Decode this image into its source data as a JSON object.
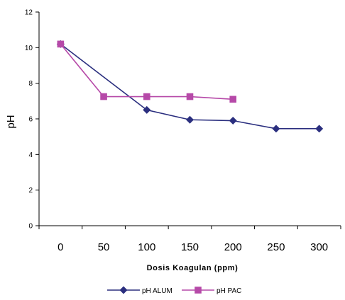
{
  "chart_data": {
    "type": "line",
    "title": "",
    "xlabel": "Dosis Koagulan (ppm)",
    "ylabel": "pH",
    "categories": [
      "0",
      "50",
      "100",
      "150",
      "200",
      "250",
      "300"
    ],
    "x": [
      0,
      50,
      100,
      150,
      200,
      250,
      300
    ],
    "ylim": [
      0,
      12
    ],
    "yticks": [
      0,
      2,
      4,
      6,
      8,
      10,
      12
    ],
    "grid": false,
    "legend_position": "bottom",
    "series": [
      {
        "name": "pH ALUM",
        "color": "#2B2F7F",
        "marker": "diamond",
        "x": [
          0,
          100,
          150,
          200,
          250,
          300
        ],
        "values": [
          10.2,
          6.5,
          5.95,
          5.9,
          5.45,
          5.45
        ]
      },
      {
        "name": "pH PAC",
        "color": "#B649A8",
        "marker": "square",
        "x": [
          0,
          50,
          100,
          150,
          200
        ],
        "values": [
          10.2,
          7.25,
          7.25,
          7.25,
          7.1
        ]
      }
    ]
  }
}
